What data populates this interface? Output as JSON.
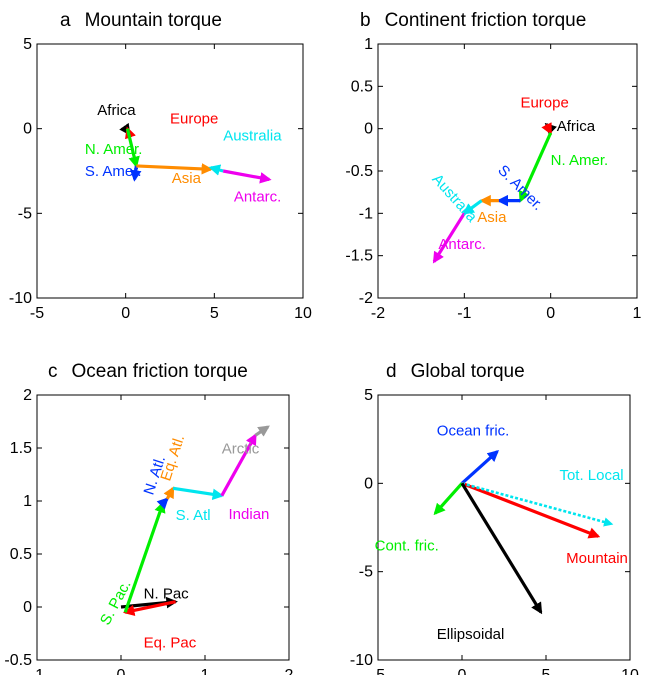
{
  "chart_data": [
    {
      "type": "vector",
      "panel_letter": "a",
      "title": "Mountain torque",
      "xlim": [
        -5,
        10
      ],
      "ylim": [
        -10,
        5
      ],
      "xticks": [
        -5,
        0,
        5,
        10
      ],
      "yticks": [
        -10,
        -5,
        0,
        5
      ],
      "grid": false,
      "vectors": [
        {
          "label": "Africa",
          "color": "#000000",
          "from": [
            0,
            0
          ],
          "to": [
            0.2,
            -0.3
          ]
        },
        {
          "label": "Europe",
          "color": "#ff0000",
          "from": [
            0.2,
            -0.3
          ],
          "to": [
            0.1,
            0.0
          ]
        },
        {
          "label": "N. Amer.",
          "color": "#00ee00",
          "from": [
            0.1,
            0.0
          ],
          "to": [
            0.6,
            -2.2
          ]
        },
        {
          "label": "S. Amer.",
          "color": "#0033ff",
          "from": [
            0.6,
            -2.2
          ],
          "to": [
            0.5,
            -3.0
          ]
        },
        {
          "label": "Asia",
          "color": "#ff8c00",
          "from": [
            0.6,
            -2.2
          ],
          "to": [
            4.8,
            -2.4
          ]
        },
        {
          "label": "Australia",
          "color": "#00e5ee",
          "from": [
            5.5,
            -2.5
          ],
          "to": [
            4.8,
            -2.3
          ]
        },
        {
          "label": "Antarc.",
          "color": "#ee00ee",
          "from": [
            5.5,
            -2.5
          ],
          "to": [
            8.1,
            -3.0
          ]
        }
      ],
      "labels": [
        {
          "text": "Africa",
          "color": "#000000",
          "at": [
            -1.6,
            0.8
          ]
        },
        {
          "text": "Europe",
          "color": "#ff0000",
          "at": [
            2.5,
            0.3
          ]
        },
        {
          "text": "Australia",
          "color": "#00e5ee",
          "at": [
            5.5,
            -0.7
          ]
        },
        {
          "text": "N. Amer.",
          "color": "#00ee00",
          "at": [
            -2.3,
            -1.5
          ]
        },
        {
          "text": "S. Amer.",
          "color": "#0033ff",
          "at": [
            -2.3,
            -2.8
          ]
        },
        {
          "text": "Asia",
          "color": "#ff8c00",
          "at": [
            2.6,
            -3.2
          ]
        },
        {
          "text": "Antarc.",
          "color": "#ee00ee",
          "at": [
            6.1,
            -4.3
          ]
        }
      ]
    },
    {
      "type": "vector",
      "panel_letter": "b",
      "title": "Continent friction torque",
      "xlim": [
        -2,
        1
      ],
      "ylim": [
        -2,
        1
      ],
      "xticks": [
        -2,
        -1,
        0,
        1
      ],
      "yticks": [
        -2,
        -1.5,
        -1,
        -0.5,
        0,
        0.5,
        1
      ],
      "grid": false,
      "vectors": [
        {
          "label": "Africa",
          "color": "#000000",
          "from": [
            0,
            0
          ],
          "to": [
            -0.05,
            0.05
          ]
        },
        {
          "label": "Europe",
          "color": "#ff0000",
          "from": [
            -0.05,
            0.05
          ],
          "to": [
            0.0,
            -0.05
          ]
        },
        {
          "label": "N. Amer.",
          "color": "#00ee00",
          "from": [
            0.0,
            -0.05
          ],
          "to": [
            -0.35,
            -0.85
          ]
        },
        {
          "label": "S. Amer.",
          "color": "#0033ff",
          "from": [
            -0.35,
            -0.85
          ],
          "to": [
            -0.6,
            -0.85
          ]
        },
        {
          "label": "Asia",
          "color": "#ff8c00",
          "from": [
            -0.6,
            -0.85
          ],
          "to": [
            -0.8,
            -0.85
          ]
        },
        {
          "label": "Australia",
          "color": "#00e5ee",
          "from": [
            -0.8,
            -0.85
          ],
          "to": [
            -1.0,
            -1.0
          ]
        },
        {
          "label": "Antarc.",
          "color": "#ee00ee",
          "from": [
            -1.0,
            -1.0
          ],
          "to": [
            -1.35,
            -1.57
          ]
        }
      ],
      "labels": [
        {
          "text": "Europe",
          "color": "#ff0000",
          "at": [
            -0.35,
            0.25
          ]
        },
        {
          "text": "Africa",
          "color": "#000000",
          "at": [
            0.07,
            -0.03
          ]
        },
        {
          "text": "S. Amer.",
          "color": "#0033ff",
          "at": [
            -0.62,
            -0.5
          ],
          "rotate": 45
        },
        {
          "text": "Australia",
          "color": "#00e5ee",
          "at": [
            -1.38,
            -0.6
          ],
          "rotate": 48
        },
        {
          "text": "N. Amer.",
          "color": "#00ee00",
          "at": [
            0.0,
            -0.43
          ]
        },
        {
          "text": "Asia",
          "color": "#ff8c00",
          "at": [
            -0.85,
            -1.1
          ]
        },
        {
          "text": "Antarc.",
          "color": "#ee00ee",
          "at": [
            -1.3,
            -1.42
          ]
        }
      ]
    },
    {
      "type": "vector",
      "panel_letter": "c",
      "title": "Ocean friction torque",
      "xlim": [
        -1,
        2
      ],
      "ylim": [
        -0.5,
        2
      ],
      "xticks": [
        -1,
        0,
        1,
        2
      ],
      "yticks": [
        -0.5,
        0,
        0.5,
        1,
        1.5,
        2
      ],
      "grid": false,
      "vectors": [
        {
          "label": "N. Pac",
          "color": "#000000",
          "from": [
            0,
            0
          ],
          "to": [
            0.65,
            0.05
          ]
        },
        {
          "label": "Eq. Pac",
          "color": "#ff0000",
          "from": [
            0.65,
            0.05
          ],
          "to": [
            0.05,
            -0.05
          ]
        },
        {
          "label": "S. Pac.",
          "color": "#00ee00",
          "from": [
            0.05,
            -0.05
          ],
          "to": [
            0.5,
            0.98
          ]
        },
        {
          "label": "N. Atl.",
          "color": "#0033ff",
          "from": [
            0.5,
            0.98
          ],
          "to": [
            0.55,
            1.02
          ]
        },
        {
          "label": "Eq. Atl.",
          "color": "#ff8c00",
          "from": [
            0.55,
            1.02
          ],
          "to": [
            0.62,
            1.12
          ]
        },
        {
          "label": "S. Atl",
          "color": "#00e5ee",
          "from": [
            0.62,
            1.12
          ],
          "to": [
            1.2,
            1.05
          ]
        },
        {
          "label": "Indian",
          "color": "#ee00ee",
          "from": [
            1.2,
            1.05
          ],
          "to": [
            1.6,
            1.62
          ]
        },
        {
          "label": "Arctic",
          "color": "#999999",
          "from": [
            1.6,
            1.62
          ],
          "to": [
            1.75,
            1.7
          ]
        }
      ],
      "labels": [
        {
          "text": "Arctic",
          "color": "#999999",
          "at": [
            1.2,
            1.45
          ]
        },
        {
          "text": "N. Atl.",
          "color": "#0033ff",
          "at": [
            0.38,
            1.05
          ],
          "rotate": -72
        },
        {
          "text": "Eq. Atl.",
          "color": "#ff8c00",
          "at": [
            0.58,
            1.18
          ],
          "rotate": -72
        },
        {
          "text": "S. Atl",
          "color": "#00e5ee",
          "at": [
            0.65,
            0.82
          ]
        },
        {
          "text": "Indian",
          "color": "#ee00ee",
          "at": [
            1.28,
            0.83
          ]
        },
        {
          "text": "S. Pac.",
          "color": "#00ee00",
          "at": [
            -0.15,
            -0.18
          ],
          "rotate": -62
        },
        {
          "text": "N. Pac",
          "color": "#000000",
          "at": [
            0.27,
            0.08
          ]
        },
        {
          "text": "Eq. Pac",
          "color": "#ff0000",
          "at": [
            0.27,
            -0.38
          ]
        }
      ]
    },
    {
      "type": "vector",
      "panel_letter": "d",
      "title": "Global torque",
      "xlim": [
        -5,
        10
      ],
      "ylim": [
        -10,
        5
      ],
      "xticks": [
        -5,
        0,
        5,
        10
      ],
      "yticks": [
        -10,
        -5,
        0,
        5
      ],
      "grid": false,
      "vectors": [
        {
          "label": "Ocean fric.",
          "color": "#0033ff",
          "from": [
            0,
            0
          ],
          "to": [
            2.1,
            1.8
          ]
        },
        {
          "label": "Cont. fric.",
          "color": "#00ee00",
          "from": [
            0,
            0
          ],
          "to": [
            -1.6,
            -1.7
          ]
        },
        {
          "label": "Mountain",
          "color": "#ff0000",
          "from": [
            0,
            0
          ],
          "to": [
            8.1,
            -3.0
          ]
        },
        {
          "label": "Tot. Local",
          "color": "#00e5ee",
          "from": [
            0,
            0
          ],
          "to": [
            8.9,
            -2.3
          ],
          "dashed": true
        },
        {
          "label": "Ellipsoidal",
          "color": "#000000",
          "from": [
            0,
            0
          ],
          "to": [
            4.7,
            -7.3
          ]
        }
      ],
      "labels": [
        {
          "text": "Ocean fric.",
          "color": "#0033ff",
          "at": [
            -1.5,
            2.7
          ]
        },
        {
          "text": "Tot. Local",
          "color": "#00e5ee",
          "at": [
            5.8,
            0.2
          ]
        },
        {
          "text": "Cont. fric.",
          "color": "#00ee00",
          "at": [
            -5.2,
            -3.8
          ]
        },
        {
          "text": "Mountain",
          "color": "#ff0000",
          "at": [
            6.2,
            -4.5
          ]
        },
        {
          "text": "Ellipsoidal",
          "color": "#000000",
          "at": [
            -1.5,
            -8.8
          ]
        }
      ]
    }
  ]
}
